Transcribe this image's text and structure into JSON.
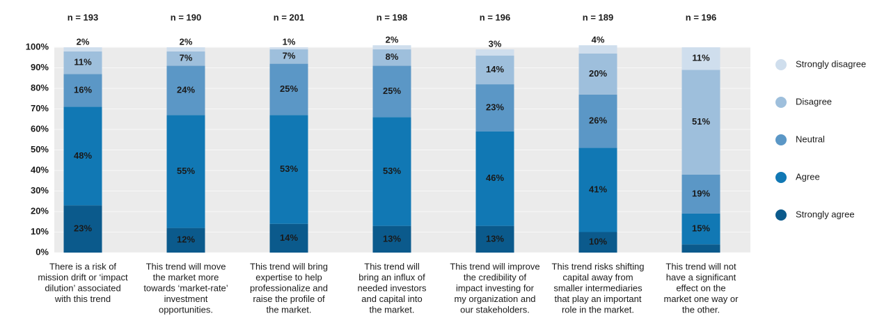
{
  "chart_data": {
    "type": "stacked_bar",
    "annotations": [
      "n = 193",
      "n = 190",
      "n = 201",
      "n = 198",
      "n = 196",
      "n = 189",
      "n = 196"
    ],
    "categories": [
      [
        "There is a risk of",
        "mission drift or ‘impact",
        "dilution’ associated",
        "with this trend"
      ],
      [
        "This trend will move",
        "the market more",
        "towards ‘market-rate’",
        "investment",
        "opportunities."
      ],
      [
        "This trend will bring",
        "expertise to help",
        "professionalize and",
        "raise the profile of",
        "the market."
      ],
      [
        "This trend will",
        "bring an influx of",
        "needed investors",
        "and capital into",
        "the market."
      ],
      [
        "This trend will improve",
        "the credibility of",
        "impact investing for",
        "my organization and",
        "our stakeholders."
      ],
      [
        "This trend risks shifting",
        "capital away from",
        "smaller intermediaries",
        "that play an important",
        "role in the market."
      ],
      [
        "This trend will not",
        "have a significant",
        "effect on the",
        "market one way or",
        "the other."
      ]
    ],
    "series": [
      {
        "name": "Strongly agree",
        "color": "#0b5a8c",
        "label_color": "#ffffff",
        "values": [
          23,
          12,
          14,
          13,
          13,
          10,
          4
        ],
        "value_labels": [
          "23%",
          "12%",
          "14%",
          "13%",
          "13%",
          "10%",
          "4%"
        ]
      },
      {
        "name": "Agree",
        "color": "#1178b4",
        "label_color": "#ffffff",
        "values": [
          48,
          55,
          53,
          53,
          46,
          41,
          15
        ],
        "value_labels": [
          "48%",
          "55%",
          "53%",
          "53%",
          "46%",
          "41%",
          "15%"
        ]
      },
      {
        "name": "Neutral",
        "color": "#5b97c6",
        "label_color": "#ffffff",
        "values": [
          16,
          24,
          25,
          25,
          23,
          26,
          19
        ],
        "value_labels": [
          "16%",
          "24%",
          "25%",
          "25%",
          "23%",
          "26%",
          "19%"
        ]
      },
      {
        "name": "Disagree",
        "color": "#9ebfdc",
        "label_color": "#1a1a1a",
        "values": [
          11,
          7,
          7,
          8,
          14,
          20,
          51
        ],
        "value_labels": [
          "11%",
          "7%",
          "7%",
          "8%",
          "14%",
          "20%",
          "51%"
        ]
      },
      {
        "name": "Strongly disagree",
        "color": "#cfdeed",
        "label_color": "#1a1a1a",
        "values": [
          2,
          2,
          1,
          2,
          3,
          4,
          11
        ],
        "value_labels": [
          "2%",
          "2%",
          "1%",
          "2%",
          "3%",
          "4%",
          "11%"
        ]
      }
    ],
    "ylim": [
      0,
      100
    ],
    "yticks": [
      {
        "value": 0,
        "label": "0%"
      },
      {
        "value": 10,
        "label": "10%"
      },
      {
        "value": 20,
        "label": "20%"
      },
      {
        "value": 30,
        "label": "30%"
      },
      {
        "value": 40,
        "label": "40%"
      },
      {
        "value": 50,
        "label": "50%"
      },
      {
        "value": 60,
        "label": "60%"
      },
      {
        "value": 70,
        "label": "70%"
      },
      {
        "value": 80,
        "label": "80%"
      },
      {
        "value": 90,
        "label": "90%"
      },
      {
        "value": 100,
        "label": "100%"
      }
    ],
    "grid": true,
    "legend": "right"
  }
}
